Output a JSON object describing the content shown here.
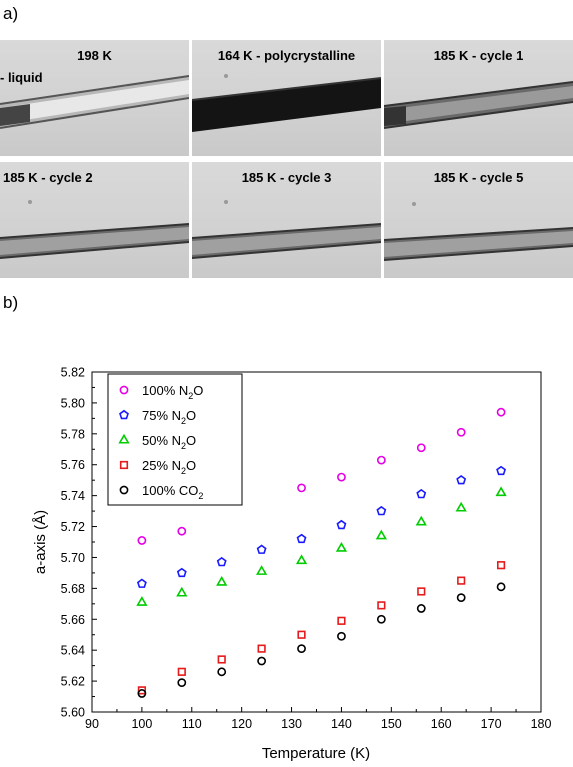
{
  "panel_a_label": "a)",
  "panel_b_label": "b)",
  "frames": [
    {
      "caption": "198 K",
      "extra": "- liquid"
    },
    {
      "caption": "164 K - polycrystalline",
      "extra": ""
    },
    {
      "caption": "185 K - cycle 1",
      "extra": ""
    },
    {
      "caption": "185 K - cycle 2",
      "extra": ""
    },
    {
      "caption": "185 K - cycle 3",
      "extra": ""
    },
    {
      "caption": "185 K - cycle 5",
      "extra": ""
    }
  ],
  "chart_data": {
    "type": "scatter",
    "xlabel": "Temperature (K)",
    "ylabel": "a-axis (Å)",
    "xlim": [
      90,
      180
    ],
    "ylim": [
      5.6,
      5.82
    ],
    "xticks": [
      "90",
      "100",
      "110",
      "120",
      "130",
      "140",
      "150",
      "160",
      "170",
      "180"
    ],
    "yticks": [
      "5.60",
      "5.62",
      "5.64",
      "5.66",
      "5.68",
      "5.70",
      "5.72",
      "5.74",
      "5.76",
      "5.78",
      "5.80",
      "5.82"
    ],
    "grid": false,
    "legend_position": "top-left",
    "series": [
      {
        "name": "100% N",
        "sub": "2",
        "suffix": "O",
        "marker": "circle",
        "color": "#e600e6",
        "x": [
          100,
          108,
          132,
          140,
          148,
          156,
          164,
          172
        ],
        "y": [
          5.711,
          5.717,
          5.745,
          5.752,
          5.763,
          5.771,
          5.781,
          5.794
        ]
      },
      {
        "name": "75% N",
        "sub": "2",
        "suffix": "O",
        "marker": "pentagon",
        "color": "#1a1aff",
        "x": [
          100,
          108,
          116,
          124,
          132,
          140,
          148,
          156,
          164,
          172
        ],
        "y": [
          5.683,
          5.69,
          5.697,
          5.705,
          5.712,
          5.721,
          5.73,
          5.741,
          5.75,
          5.756
        ]
      },
      {
        "name": "50% N",
        "sub": "2",
        "suffix": "O",
        "marker": "triangle",
        "color": "#00cc00",
        "x": [
          100,
          108,
          116,
          124,
          132,
          140,
          148,
          156,
          164,
          172
        ],
        "y": [
          5.671,
          5.677,
          5.684,
          5.691,
          5.698,
          5.706,
          5.714,
          5.723,
          5.732,
          5.742
        ]
      },
      {
        "name": "25% N",
        "sub": "2",
        "suffix": "O",
        "marker": "square",
        "color": "#e61a1a",
        "x": [
          100,
          108,
          116,
          124,
          132,
          140,
          148,
          156,
          164,
          172
        ],
        "y": [
          5.614,
          5.626,
          5.634,
          5.641,
          5.65,
          5.659,
          5.669,
          5.678,
          5.685,
          5.695
        ]
      },
      {
        "name": "100% CO",
        "sub": "2",
        "suffix": "",
        "marker": "circle",
        "color": "#000000",
        "x": [
          100,
          108,
          116,
          124,
          132,
          140,
          148,
          156,
          164,
          172
        ],
        "y": [
          5.612,
          5.619,
          5.626,
          5.633,
          5.641,
          5.649,
          5.66,
          5.667,
          5.674,
          5.681
        ]
      }
    ]
  }
}
